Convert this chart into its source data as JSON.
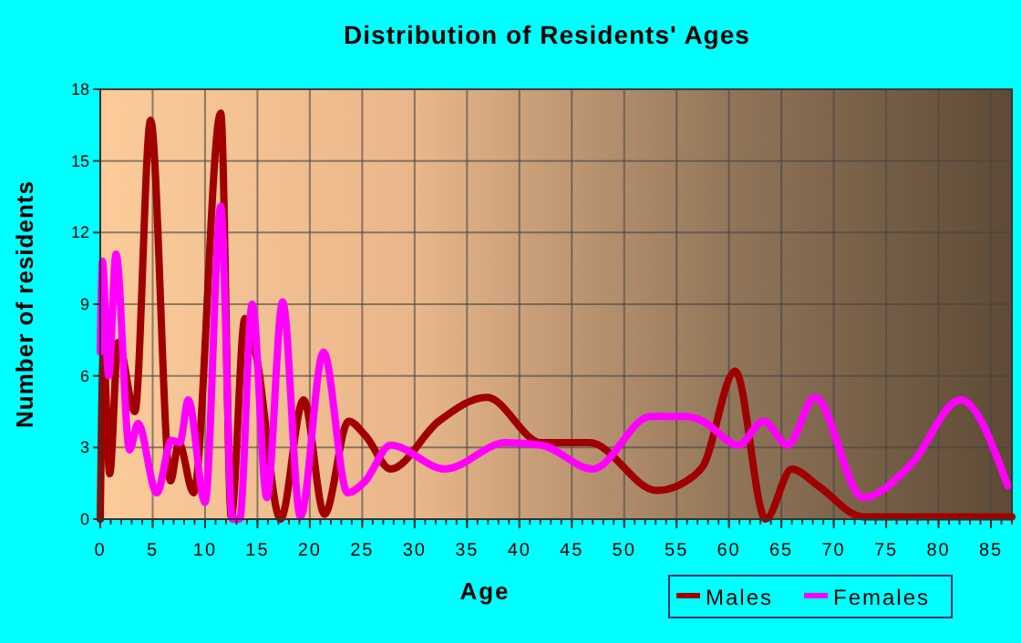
{
  "chart_data": {
    "type": "line",
    "title": "Distribution of Residents' Ages",
    "xlabel": "Age",
    "ylabel": "Number of residents",
    "xlim": [
      0,
      87
    ],
    "xticks": [
      0,
      5,
      10,
      15,
      20,
      25,
      30,
      35,
      40,
      45,
      50,
      55,
      60,
      65,
      70,
      75,
      80,
      85
    ],
    "ylim": [
      0,
      18
    ],
    "yticks": [
      0,
      3,
      6,
      9,
      12,
      15,
      18
    ],
    "grid": true,
    "legend": "bottom right",
    "marker": "none",
    "line_style": "solid",
    "series": [
      {
        "name": "Males",
        "color": "#a00000",
        "x": [
          0,
          0.3,
          0.9,
          1.7,
          3.3,
          4.8,
          6.7,
          7.5,
          8.9,
          11.5,
          12.5,
          13.8,
          14.9,
          17.2,
          19.4,
          21.4,
          23.7,
          25.3,
          27.7,
          32.3,
          36.9,
          42.1,
          46.7,
          53.1,
          56.6,
          57.5,
          60.6,
          63.5,
          66,
          68.5,
          72.8,
          80,
          87
        ],
        "values": [
          0,
          7.1,
          1.9,
          7.4,
          4.5,
          16.7,
          1.6,
          3.2,
          1.1,
          17,
          0.1,
          8.4,
          6.8,
          0,
          5,
          0.2,
          4.1,
          3.5,
          2.1,
          4.1,
          5.1,
          3.2,
          3.2,
          1.2,
          1.8,
          2.2,
          6.2,
          0,
          2.1,
          1.4,
          0.1,
          0.1,
          0.1
        ]
      },
      {
        "name": "Females",
        "color": "#ff00ff",
        "x": [
          0,
          0.2,
          0.8,
          1.5,
          2.8,
          3.6,
          5.4,
          6.8,
          7.6,
          8.4,
          10,
          11.5,
          12.6,
          13.3,
          14.5,
          15.9,
          17.4,
          19.1,
          21.3,
          23.6,
          25.3,
          27.7,
          32.9,
          38.7,
          42.1,
          47,
          52.5,
          56,
          57.5,
          60.9,
          63.3,
          65.6,
          68.2,
          72.8,
          77.4,
          82.1,
          86.6
        ],
        "values": [
          7,
          10.8,
          6,
          11.1,
          2.9,
          4,
          1.1,
          3.3,
          3.2,
          5,
          0.7,
          13.1,
          0,
          0,
          9,
          0.9,
          9.1,
          0.1,
          7,
          1.1,
          1.6,
          3.1,
          2.1,
          3.2,
          3.1,
          2.1,
          4.3,
          4.3,
          4.1,
          3.1,
          4.1,
          3.1,
          5.1,
          0.9,
          2.3,
          5,
          1.4
        ]
      }
    ]
  }
}
